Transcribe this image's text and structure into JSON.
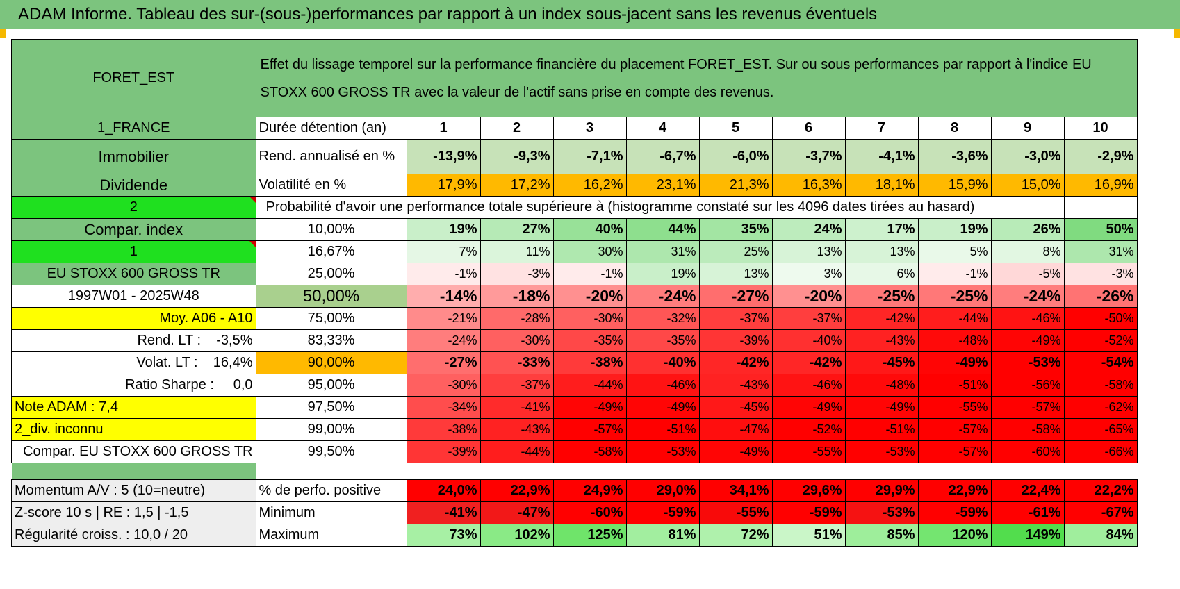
{
  "title": "ADAM Informe. Tableau des sur-(sous-)performances par rapport à un index sous-jacent sans les revenus éventuels",
  "colors": {
    "label_green": "#7cc47e",
    "bright_green": "#1fe01f",
    "orange": "#ffb900",
    "yellow": "#ffff00",
    "red_text": "#e00000"
  },
  "sidebar": {
    "fund": "FORET_EST",
    "country": "1_FRANCE",
    "category": "Immobilier",
    "distribution": "Dividende",
    "code2": "2",
    "compar_index": "Compar. index",
    "code1": "1",
    "index_name": "EU STOXX 600 GROSS TR",
    "period": "1997W01 - 2025W48",
    "moy": "Moy. A06 - A10",
    "rend_lt": "Rend. LT :    -3,5%",
    "volat_lt": "Volat. LT :    16,4%",
    "sharpe": "Ratio Sharpe :     0,0",
    "note": "Note ADAM : 7,4",
    "div": "2_div. inconnu",
    "compar_full": "Compar. EU STOXX 600 GROSS TR",
    "momentum": "Momentum A/V : 5 (10=neutre)",
    "zscore": "Z-score 10 s | RE : 1,5 | -1,5",
    "regularite": "Régularité croiss. : 10,0 / 20"
  },
  "header_text": "Effet du lissage temporel sur la performance financière du placement FORET_EST. Sur ou sous performances par rapport à l'indice EU STOXX 600 GROSS TR avec la valeur de l'actif sans prise en compte des revenus.",
  "row_labels": {
    "duree": "Durée détention (an)",
    "rend": "Rend. annualisé en %",
    "vol": "Volatilité en %",
    "prob": "Probabilité d'avoir une performance totale supérieure à (histogramme constaté sur les 4096 dates tirées au hasard)",
    "pos": "% de perfo. positive",
    "min": "Minimum",
    "max": "Maximum"
  },
  "years": [
    "1",
    "2",
    "3",
    "4",
    "5",
    "6",
    "7",
    "8",
    "9",
    "10"
  ],
  "rend": [
    "-13,9%",
    "-9,3%",
    "-7,1%",
    "-6,7%",
    "-6,0%",
    "-3,7%",
    "-4,1%",
    "-3,6%",
    "-3,0%",
    "-2,9%"
  ],
  "vol": [
    "17,9%",
    "17,2%",
    "16,2%",
    "23,1%",
    "21,3%",
    "16,3%",
    "18,1%",
    "15,9%",
    "15,0%",
    "16,9%"
  ],
  "quantiles": [
    {
      "label": "10,00%",
      "bold": true,
      "values": [
        "19%",
        "27%",
        "40%",
        "44%",
        "35%",
        "24%",
        "17%",
        "19%",
        "26%",
        "50%"
      ]
    },
    {
      "label": "16,67%",
      "bold": false,
      "values": [
        "7%",
        "11%",
        "30%",
        "31%",
        "25%",
        "13%",
        "13%",
        "5%",
        "8%",
        "31%"
      ]
    },
    {
      "label": "25,00%",
      "bold": false,
      "values": [
        "-1%",
        "-3%",
        "-1%",
        "19%",
        "13%",
        "3%",
        "6%",
        "-1%",
        "-5%",
        "-3%"
      ]
    },
    {
      "label": "50,00%",
      "bold": true,
      "values": [
        "-14%",
        "-18%",
        "-20%",
        "-24%",
        "-27%",
        "-20%",
        "-25%",
        "-25%",
        "-24%",
        "-26%"
      ]
    },
    {
      "label": "75,00%",
      "bold": false,
      "values": [
        "-21%",
        "-28%",
        "-30%",
        "-32%",
        "-37%",
        "-37%",
        "-42%",
        "-44%",
        "-46%",
        "-50%"
      ]
    },
    {
      "label": "83,33%",
      "bold": false,
      "values": [
        "-24%",
        "-30%",
        "-35%",
        "-35%",
        "-39%",
        "-40%",
        "-43%",
        "-48%",
        "-49%",
        "-52%"
      ]
    },
    {
      "label": "90,00%",
      "bold": true,
      "values": [
        "-27%",
        "-33%",
        "-38%",
        "-40%",
        "-42%",
        "-42%",
        "-45%",
        "-49%",
        "-53%",
        "-54%"
      ]
    },
    {
      "label": "95,00%",
      "bold": false,
      "values": [
        "-30%",
        "-37%",
        "-44%",
        "-46%",
        "-43%",
        "-46%",
        "-48%",
        "-51%",
        "-56%",
        "-58%"
      ]
    },
    {
      "label": "97,50%",
      "bold": false,
      "values": [
        "-34%",
        "-41%",
        "-49%",
        "-49%",
        "-45%",
        "-49%",
        "-49%",
        "-55%",
        "-57%",
        "-62%"
      ]
    },
    {
      "label": "99,00%",
      "bold": false,
      "values": [
        "-38%",
        "-43%",
        "-57%",
        "-51%",
        "-47%",
        "-52%",
        "-51%",
        "-57%",
        "-58%",
        "-65%"
      ]
    },
    {
      "label": "99,50%",
      "bold": false,
      "values": [
        "-39%",
        "-44%",
        "-58%",
        "-53%",
        "-49%",
        "-55%",
        "-53%",
        "-57%",
        "-60%",
        "-66%"
      ]
    }
  ],
  "pos": [
    "24,0%",
    "22,9%",
    "24,9%",
    "29,0%",
    "34,1%",
    "29,6%",
    "29,9%",
    "22,9%",
    "22,4%",
    "22,2%"
  ],
  "min": [
    "-41%",
    "-47%",
    "-60%",
    "-59%",
    "-55%",
    "-59%",
    "-53%",
    "-59%",
    "-61%",
    "-67%"
  ],
  "max": [
    "73%",
    "102%",
    "125%",
    "81%",
    "72%",
    "51%",
    "85%",
    "120%",
    "149%",
    "84%"
  ]
}
